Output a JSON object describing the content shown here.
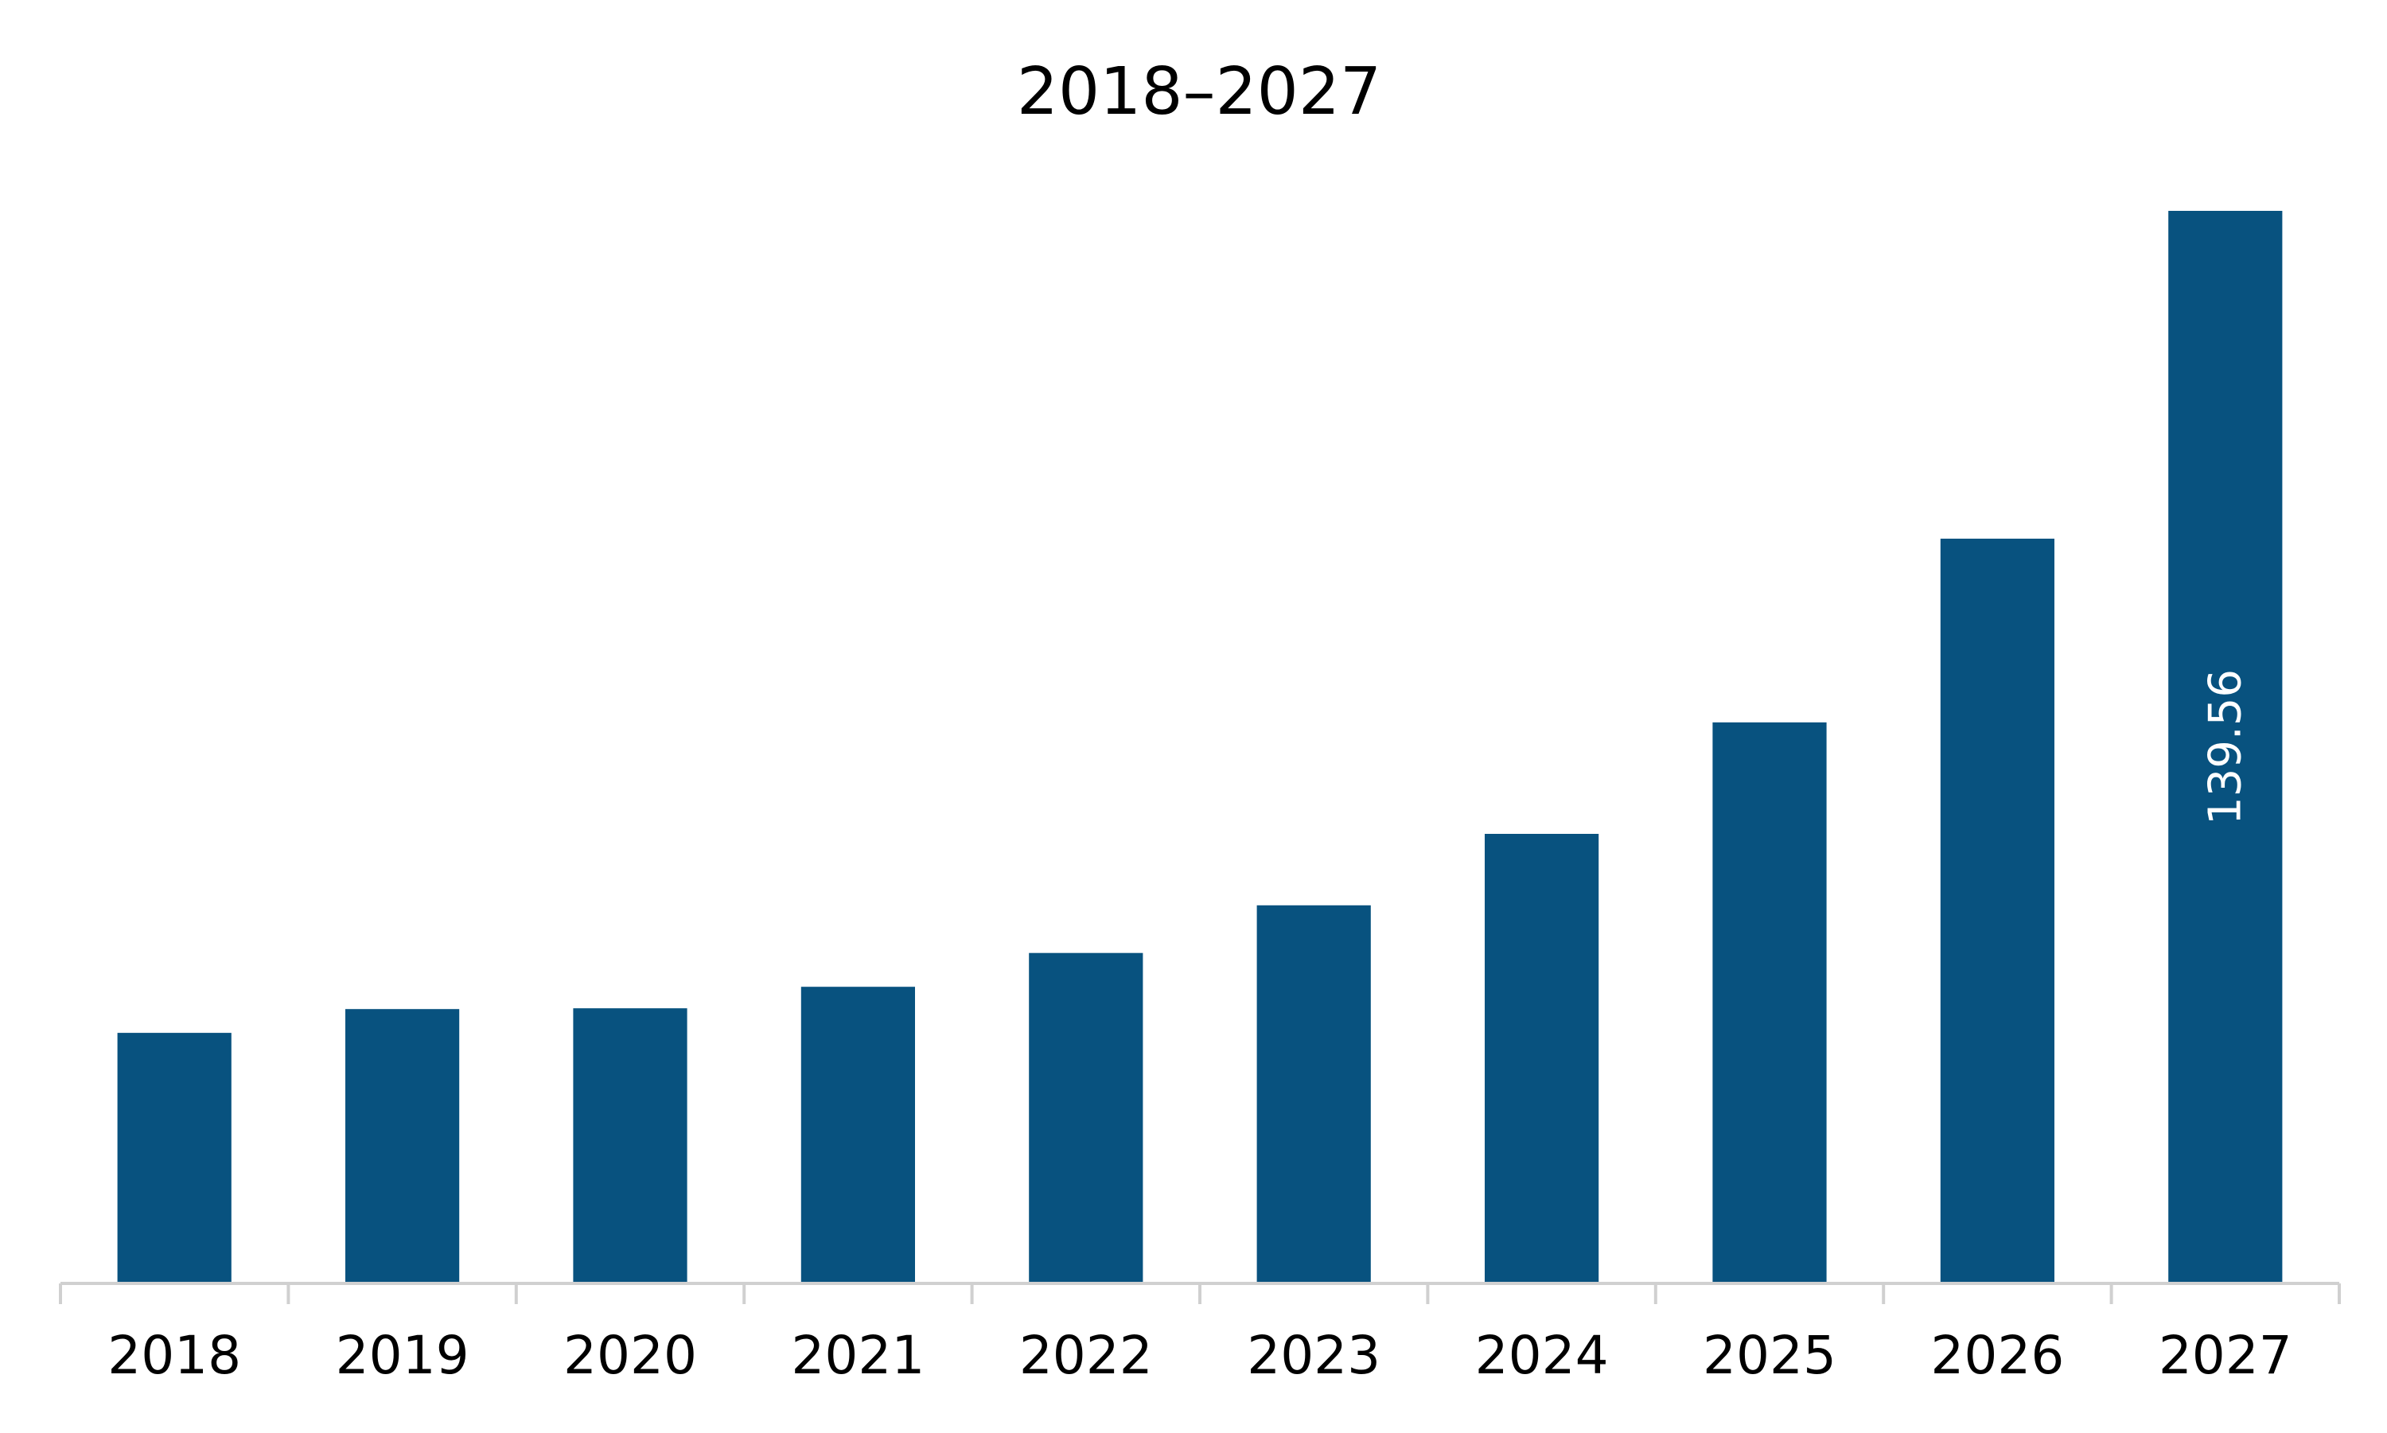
{
  "chart_data": {
    "type": "bar",
    "title": "2018–2027",
    "xlabel": "",
    "ylabel": "",
    "categories": [
      "2018",
      "2019",
      "2020",
      "2021",
      "2022",
      "2023",
      "2024",
      "2025",
      "2026",
      "2027"
    ],
    "series": [
      {
        "values": [
          32.6,
          35.7,
          35.8,
          38.6,
          43.0,
          49.2,
          58.5,
          73.0,
          96.9,
          139.56
        ],
        "color": "#08527f"
      }
    ],
    "data_labels": [
      {
        "category": "2027",
        "text": "139.56"
      }
    ],
    "ylim": [
      0,
      139.56
    ],
    "grid": false,
    "legend": "none",
    "colors": {
      "bar": "#08527f",
      "axis": "#d0d0d0",
      "label": "#ffffff",
      "text": "#000000"
    }
  }
}
